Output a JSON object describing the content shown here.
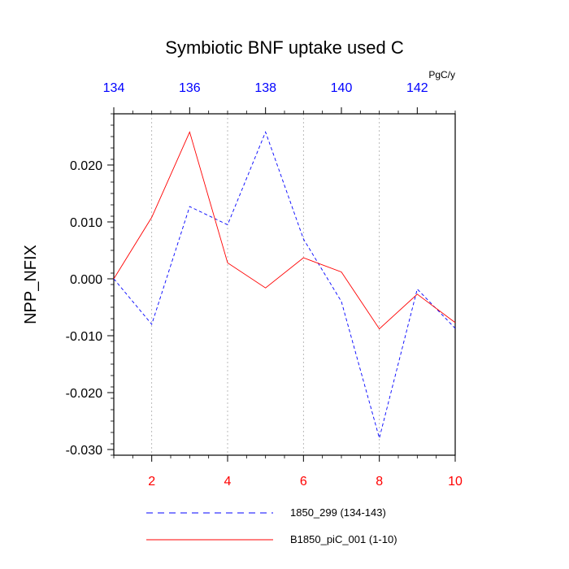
{
  "chart_data": {
    "type": "line",
    "title": "Symbiotic BNF uptake used C",
    "units": "PgC/y",
    "ylabel": "NPP_NFIX",
    "xlabel": "",
    "bottom_axis": {
      "range": [
        1,
        10
      ],
      "ticks": [
        2,
        4,
        6,
        8,
        10
      ],
      "tick_labels": [
        "2",
        "4",
        "6",
        "8",
        "10"
      ],
      "color": "#ff0000"
    },
    "top_axis": {
      "range": [
        134,
        143
      ],
      "ticks": [
        134,
        136,
        138,
        140,
        142
      ],
      "tick_labels": [
        "134",
        "136",
        "138",
        "140",
        "142"
      ],
      "color": "#0000ff"
    },
    "ylim": [
      -0.031,
      0.029
    ],
    "yticks": [
      -0.03,
      -0.02,
      -0.01,
      0.0,
      0.01,
      0.02
    ],
    "ytick_labels": [
      "-0.030",
      "-0.020",
      "-0.010",
      "0.000",
      "0.010",
      "0.020"
    ],
    "grid": "vertical dotted at bottom-axis major ticks",
    "legend_placement": "bottom",
    "series": [
      {
        "name": "1850_299 (134-143)",
        "color": "#0000ff",
        "dash": "dashed",
        "x": [
          134,
          135,
          136,
          137,
          138,
          139,
          140,
          141,
          142,
          143
        ],
        "values": [
          0.0,
          -0.008,
          0.0127,
          0.0095,
          0.0258,
          0.007,
          -0.004,
          -0.028,
          -0.0018,
          -0.0087
        ]
      },
      {
        "name": "B1850_piC_001 (1-10)",
        "color": "#ff0000",
        "dash": "solid",
        "x": [
          1,
          2,
          3,
          4,
          5,
          6,
          7,
          8,
          9,
          10
        ],
        "values": [
          0.0,
          0.0108,
          0.0258,
          0.0028,
          -0.0016,
          0.0037,
          0.0012,
          -0.0088,
          -0.0027,
          -0.0077
        ]
      }
    ]
  }
}
